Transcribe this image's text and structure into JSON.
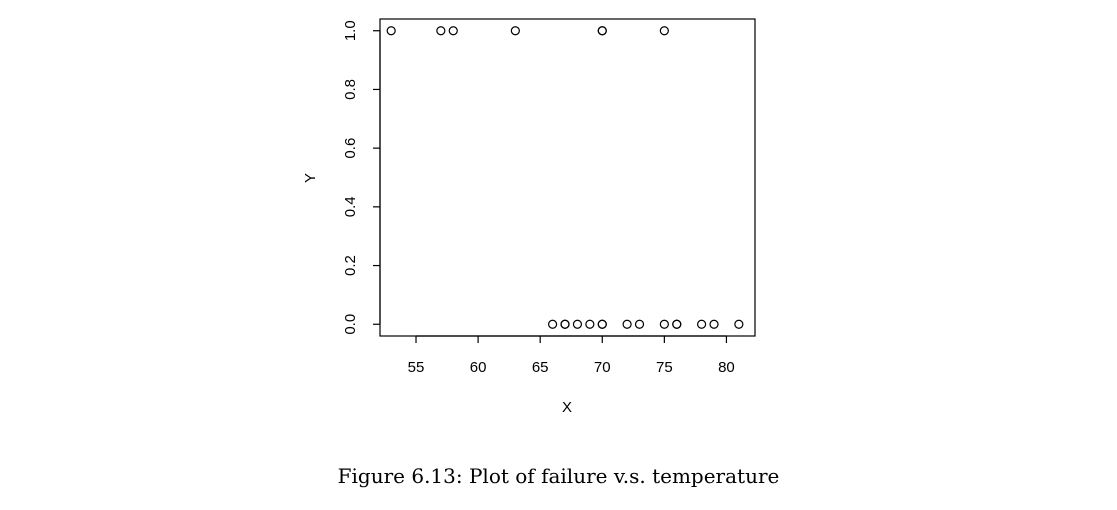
{
  "chart_data": {
    "type": "scatter",
    "xlabel": "X",
    "ylabel": "Y",
    "xlim": [
      52.1,
      82.3
    ],
    "ylim": [
      -0.04,
      1.04
    ],
    "xticks": [
      "55",
      "60",
      "65",
      "70",
      "75",
      "80"
    ],
    "yticks": [
      "0.0",
      "0.2",
      "0.4",
      "0.6",
      "0.8",
      "1.0"
    ],
    "marker": "open-circle",
    "color": "#000000",
    "points": [
      {
        "x": 53,
        "y": 1
      },
      {
        "x": 57,
        "y": 1
      },
      {
        "x": 58,
        "y": 1
      },
      {
        "x": 63,
        "y": 1
      },
      {
        "x": 70,
        "y": 1
      },
      {
        "x": 70,
        "y": 1
      },
      {
        "x": 75,
        "y": 1
      },
      {
        "x": 66,
        "y": 0
      },
      {
        "x": 67,
        "y": 0
      },
      {
        "x": 67,
        "y": 0
      },
      {
        "x": 68,
        "y": 0
      },
      {
        "x": 69,
        "y": 0
      },
      {
        "x": 70,
        "y": 0
      },
      {
        "x": 70,
        "y": 0
      },
      {
        "x": 72,
        "y": 0
      },
      {
        "x": 73,
        "y": 0
      },
      {
        "x": 75,
        "y": 0
      },
      {
        "x": 76,
        "y": 0
      },
      {
        "x": 76,
        "y": 0
      },
      {
        "x": 78,
        "y": 0
      },
      {
        "x": 79,
        "y": 0
      },
      {
        "x": 81,
        "y": 0
      }
    ]
  },
  "caption": "Figure 6.13: Plot of failure v.s. temperature"
}
